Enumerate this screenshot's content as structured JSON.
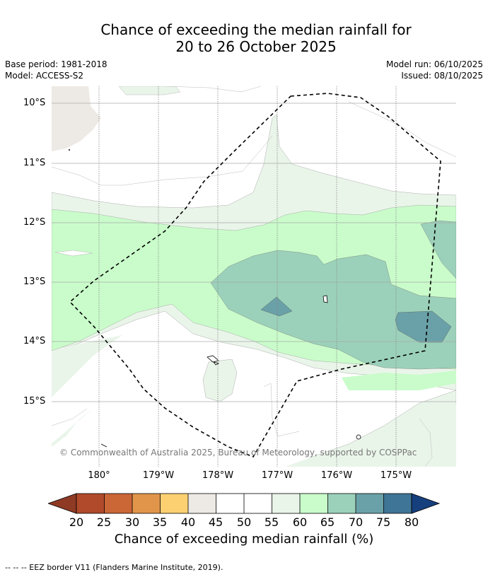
{
  "title": {
    "line1": "Chance of exceeding the median rainfall for",
    "line2": "20 to 26 October 2025"
  },
  "meta": {
    "base_period": "Base period: 1981-2018",
    "model": "Model: ACCESS-S2",
    "model_run": "Model run: 06/10/2025",
    "issued": "Issued: 08/10/2025"
  },
  "map": {
    "lat_labels": [
      "10°S",
      "11°S",
      "12°S",
      "13°S",
      "14°S",
      "15°S"
    ],
    "lon_labels": [
      "180°",
      "179°W",
      "178°W",
      "177°W",
      "176°W",
      "175°W"
    ],
    "copyright": "© Commonwealth of Australia 2025, Bureau of Meteorology, supported by COSPPac"
  },
  "colorbar": {
    "title": "Chance of exceeding median rainfall (%)",
    "ticks": [
      "20",
      "25",
      "30",
      "35",
      "40",
      "45",
      "50",
      "55",
      "60",
      "65",
      "70",
      "75",
      "80"
    ],
    "colors": {
      "below20": "#8e3a25",
      "c20_25": "#b04a2a",
      "c25_30": "#cb6637",
      "c30_35": "#e0954b",
      "c35_40": "#fcd071",
      "c40_45": "#ede9e4",
      "c45_50": "#ffffff",
      "c50_55": "#ffffff",
      "c55_60": "#eaf5ea",
      "c60_65": "#c9fcca",
      "c65_70": "#9bd1ba",
      "c70_75": "#6aa1a8",
      "c75_80": "#3f7596",
      "above80": "#163f7d"
    }
  },
  "footer": {
    "eez": "--  --  -- EEZ border V11 (Flanders Marine Institute, 2019)."
  }
}
